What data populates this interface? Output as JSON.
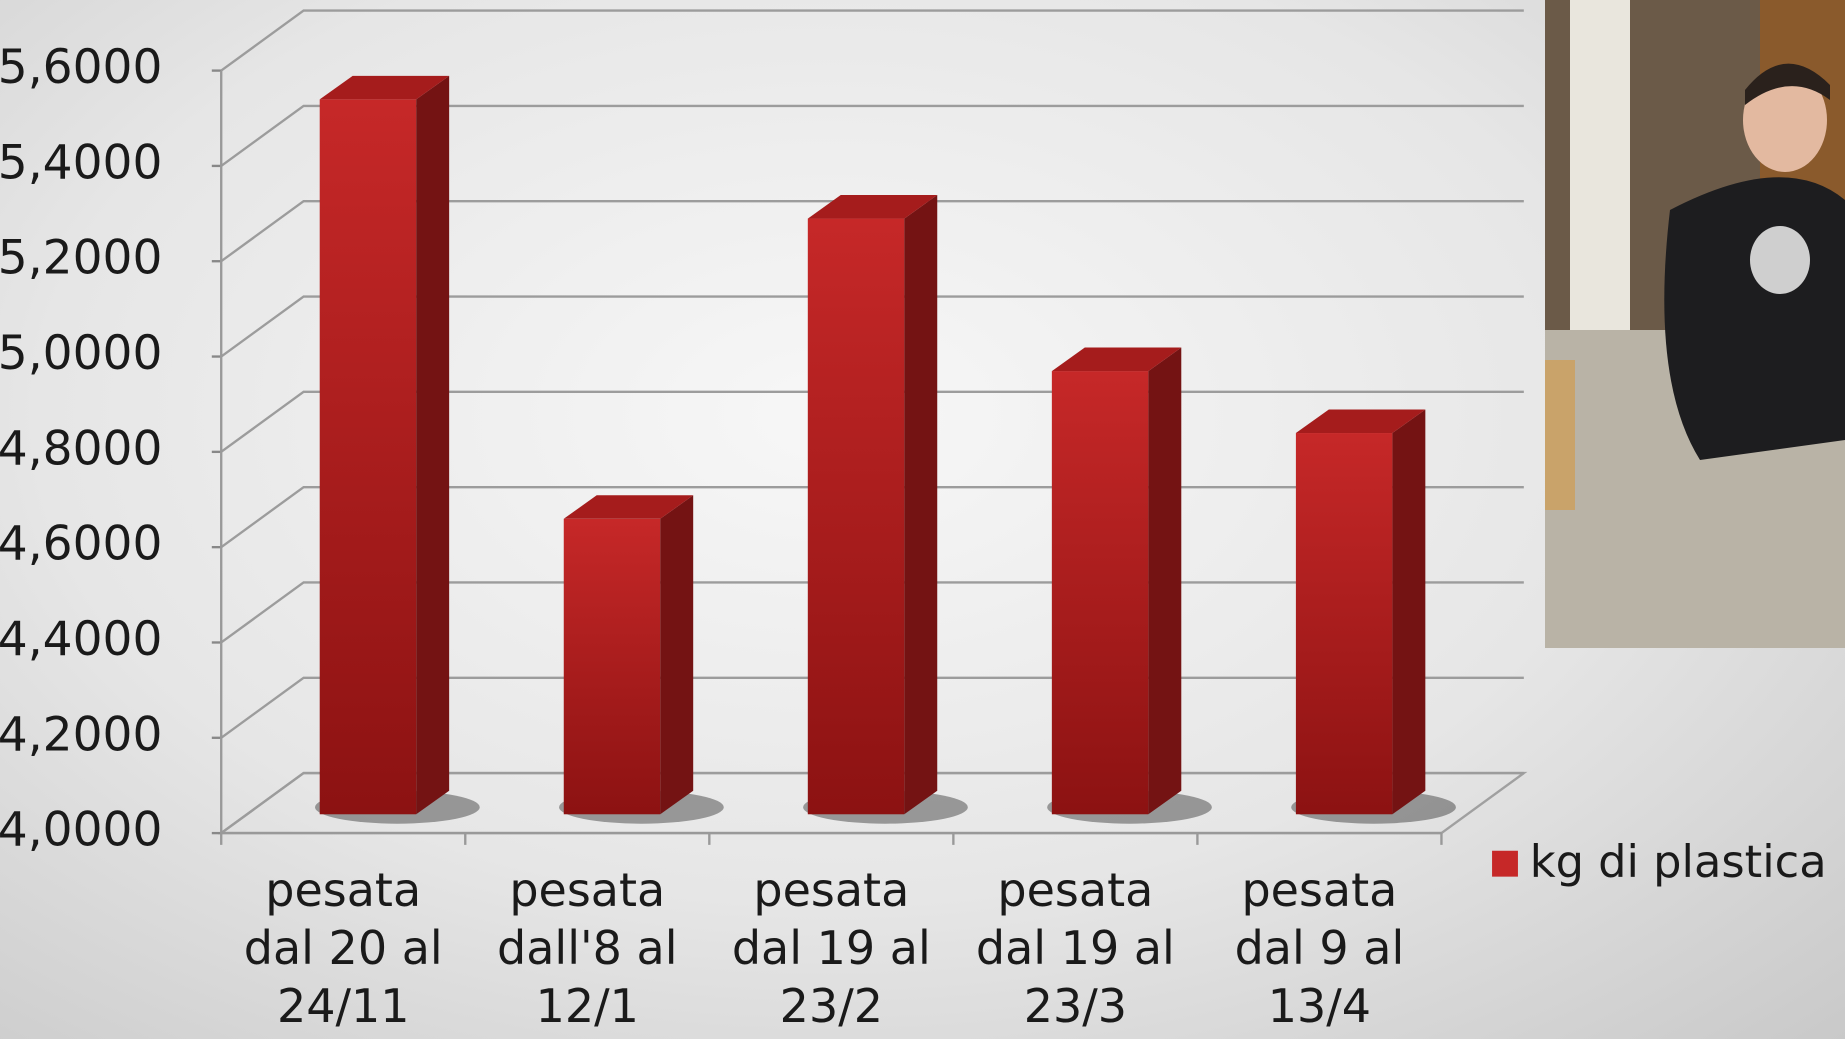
{
  "chart_data": {
    "type": "bar3d",
    "categories": [
      "pesata\ndal 20 al\n24/11",
      "pesata\ndall'8 al\n12/1",
      "pesata\ndal 19 al\n23/2",
      "pesata\ndal 19 al\n23/3",
      "pesata\ndal 9 al\n13/4"
    ],
    "series": [
      {
        "name": "kg di plastica",
        "color": "#c62828",
        "values": [
          5.5,
          4.62,
          5.25,
          4.93,
          4.8
        ]
      }
    ],
    "ylim": [
      4,
      5.6
    ],
    "yticks": [
      {
        "value": 4,
        "label": "4,0000"
      },
      {
        "value": 4.2,
        "label": "4,2000"
      },
      {
        "value": 4.4,
        "label": "4,4000"
      },
      {
        "value": 4.6,
        "label": "4,6000"
      },
      {
        "value": 4.8,
        "label": "4,8000"
      },
      {
        "value": 5,
        "label": "5,0000"
      },
      {
        "value": 5.2,
        "label": "5,2000"
      },
      {
        "value": 5.4,
        "label": "5,4000"
      },
      {
        "value": 5.6,
        "label": "5,6000"
      }
    ],
    "grid": true,
    "legend": "right"
  }
}
